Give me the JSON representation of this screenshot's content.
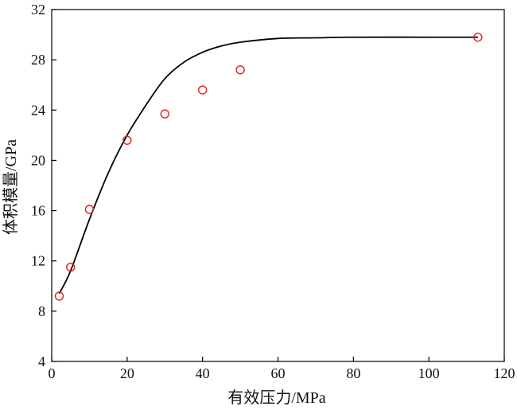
{
  "chart_data": {
    "type": "scatter",
    "xlabel": "有效压力/MPa",
    "ylabel": "体积模量/GPa",
    "xlim": [
      0,
      120
    ],
    "ylim": [
      4,
      32
    ],
    "xticks": [
      0,
      20,
      40,
      60,
      80,
      100,
      120
    ],
    "yticks": [
      4,
      8,
      12,
      16,
      20,
      24,
      28,
      32
    ],
    "grid": false,
    "series": [
      {
        "kind": "scatter",
        "marker": "open-circle",
        "color": "#e02020",
        "points": [
          {
            "x": 2,
            "y": 9.2
          },
          {
            "x": 5,
            "y": 11.5
          },
          {
            "x": 10,
            "y": 16.1
          },
          {
            "x": 20,
            "y": 21.6
          },
          {
            "x": 30,
            "y": 23.7
          },
          {
            "x": 40,
            "y": 25.6
          },
          {
            "x": 50,
            "y": 27.2
          },
          {
            "x": 113,
            "y": 29.8
          }
        ]
      },
      {
        "kind": "line",
        "color": "#000000",
        "points": [
          {
            "x": 2,
            "y": 9.4
          },
          {
            "x": 5,
            "y": 11.2
          },
          {
            "x": 10,
            "y": 15.3
          },
          {
            "x": 15,
            "y": 19.0
          },
          {
            "x": 20,
            "y": 22.0
          },
          {
            "x": 25,
            "y": 24.4
          },
          {
            "x": 30,
            "y": 26.5
          },
          {
            "x": 35,
            "y": 27.8
          },
          {
            "x": 40,
            "y": 28.6
          },
          {
            "x": 45,
            "y": 29.1
          },
          {
            "x": 50,
            "y": 29.4
          },
          {
            "x": 60,
            "y": 29.7
          },
          {
            "x": 70,
            "y": 29.75
          },
          {
            "x": 80,
            "y": 29.8
          },
          {
            "x": 100,
            "y": 29.8
          },
          {
            "x": 113,
            "y": 29.8
          }
        ]
      }
    ]
  }
}
